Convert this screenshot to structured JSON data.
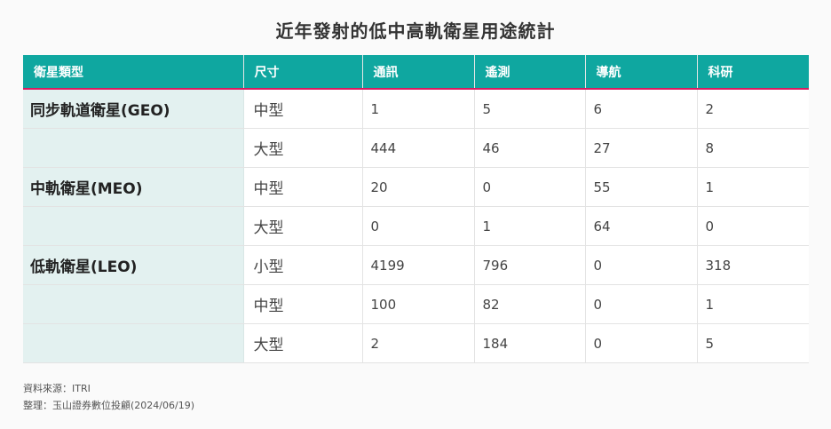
{
  "title": "近年發射的低中高軌衛星用途統計",
  "table": {
    "headers": [
      "衛星類型",
      "尺寸",
      "通訊",
      "遙測",
      "導航",
      "科研"
    ],
    "rows": [
      {
        "type": "同步軌道衛星(GEO)",
        "size": "中型",
        "values": [
          "1",
          "5",
          "6",
          "2"
        ]
      },
      {
        "type": "",
        "size": "大型",
        "values": [
          "444",
          "46",
          "27",
          "8"
        ]
      },
      {
        "type": "中軌衛星(MEO)",
        "size": "中型",
        "values": [
          "20",
          "0",
          "55",
          "1"
        ]
      },
      {
        "type": "",
        "size": "大型",
        "values": [
          "0",
          "1",
          "64",
          "0"
        ]
      },
      {
        "type": "低軌衛星(LEO)",
        "size": "小型",
        "values": [
          "4199",
          "796",
          "0",
          "318"
        ]
      },
      {
        "type": "",
        "size": "中型",
        "values": [
          "100",
          "82",
          "0",
          "1"
        ]
      },
      {
        "type": "",
        "size": "大型",
        "values": [
          "2",
          "184",
          "0",
          "5"
        ]
      }
    ]
  },
  "footer": {
    "source": "資料來源：ITRI",
    "compiled": "整理：玉山證券數位投顧(2024/06/19)"
  }
}
